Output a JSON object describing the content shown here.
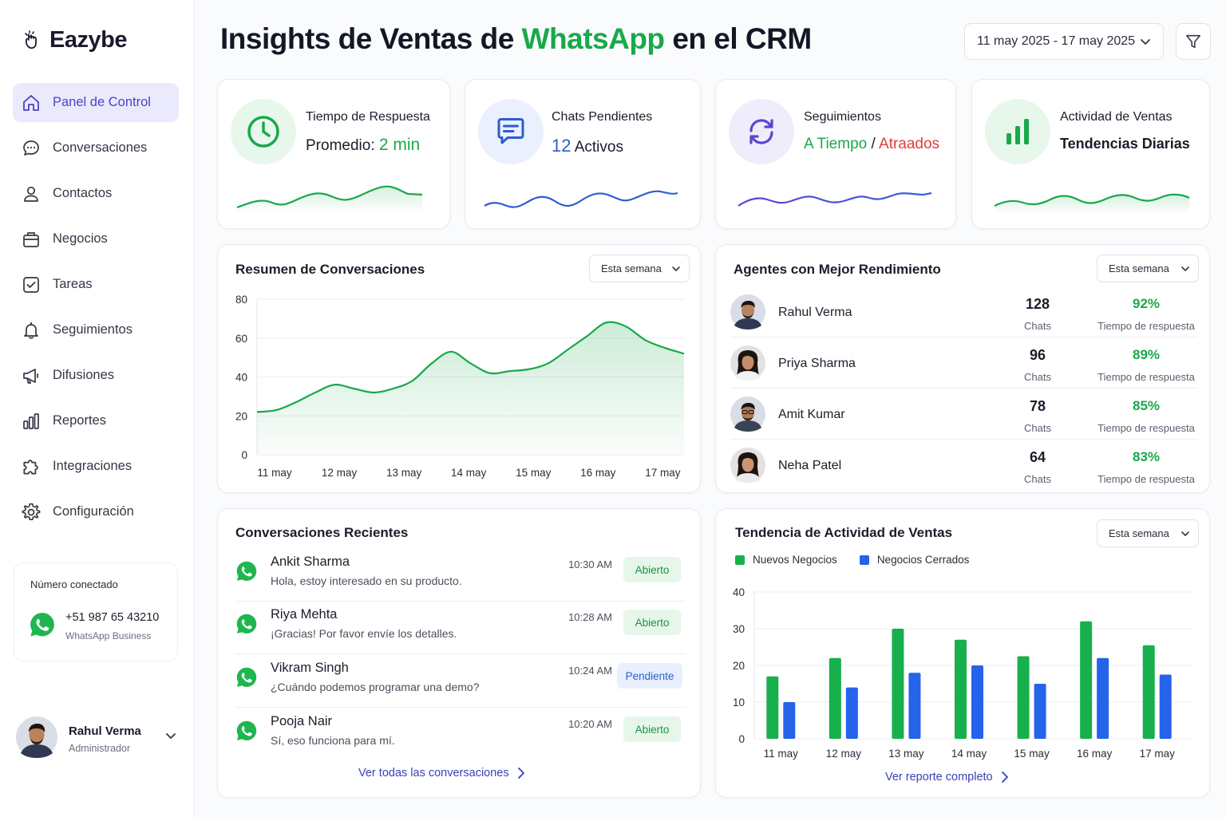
{
  "app": {
    "brand": "Eazybe"
  },
  "sidebar": {
    "items": [
      {
        "label": "Panel de Control",
        "icon": "home-icon",
        "active": true
      },
      {
        "label": "Conversaciones",
        "icon": "chat-bubble-icon"
      },
      {
        "label": "Contactos",
        "icon": "user-icon"
      },
      {
        "label": "Negocios",
        "icon": "briefcase-icon"
      },
      {
        "label": "Tareas",
        "icon": "checkbox-icon"
      },
      {
        "label": "Seguimientos",
        "icon": "bell-icon"
      },
      {
        "label": "Difusiones",
        "icon": "megaphone-icon"
      },
      {
        "label": "Reportes",
        "icon": "bar-chart-icon"
      },
      {
        "label": "Integraciones",
        "icon": "puzzle-icon"
      },
      {
        "label": "Configuración",
        "icon": "gear-icon"
      }
    ],
    "connected": {
      "title": "Número conectado",
      "number": "+51 987 65 43210",
      "type": "WhatsApp Business"
    },
    "user": {
      "name": "Rahul Verma",
      "role": "Administrador"
    }
  },
  "header": {
    "title_part1": "Insights de Ventas de ",
    "title_highlight": "WhatsApp",
    "title_part2": " en el CRM",
    "date_range": "11 may 2025 - 17 may 2025"
  },
  "kpis": {
    "response": {
      "label": "Tiempo de Respuesta",
      "prefix": "Promedio: ",
      "value": "2 min"
    },
    "pending": {
      "label": "Chats Pendientes",
      "value": "12",
      "suffix": " Activos"
    },
    "followups": {
      "label": "Seguimientos",
      "on_time": "A Tiempo",
      "sep": " / ",
      "late": "Atraados"
    },
    "sales": {
      "label": "Actividad de Ventas",
      "sub": "Tendencias Diarias"
    }
  },
  "conv_summary": {
    "title": "Resumen de Conversaciones",
    "filter": "Esta semana"
  },
  "agents": {
    "title": "Agentes con Mejor Rendimiento",
    "filter": "Esta semana",
    "chats_label": "Chats",
    "rate_label": "Tiempo de respuesta",
    "rows": [
      {
        "name": "Rahul Verma",
        "chats": "128",
        "rate": "92%"
      },
      {
        "name": "Priya Sharma",
        "chats": "96",
        "rate": "89%"
      },
      {
        "name": "Amit Kumar",
        "chats": "78",
        "rate": "85%"
      },
      {
        "name": "Neha Patel",
        "chats": "64",
        "rate": "83%"
      }
    ]
  },
  "recent": {
    "title": "Conversaciones Recientes",
    "rows": [
      {
        "name": "Ankit Sharma",
        "msg": "Hola, estoy interesado en su producto.",
        "time": "10:30 AM",
        "status": "Abierto"
      },
      {
        "name": "Riya Mehta",
        "msg": "¡Gracias! Por favor envíe los detalles.",
        "time": "10:28 AM",
        "status": "Abierto"
      },
      {
        "name": "Vikram Singh",
        "msg": "¿Cuándo podemos programar una demo?",
        "time": "10:24 AM",
        "status": "Pendiente"
      },
      {
        "name": "Pooja Nair",
        "msg": "Sí, eso funciona para mí.",
        "time": "10:20 AM",
        "status": "Abierto"
      }
    ],
    "link": "Ver todas las conversaciones"
  },
  "sales_trend": {
    "title": "Tendencia de Actividad de Ventas",
    "filter": "Esta semana",
    "link": "Ver reporte completo"
  },
  "colors": {
    "green": "#19a84a",
    "blue": "#2b5dd3",
    "purple": "#5b45d6",
    "red": "#e23b3b",
    "bar_green": "#17b04c",
    "bar_blue": "#2563eb"
  },
  "chart_data": [
    {
      "type": "area",
      "categories": [
        "11 may",
        "12 may",
        "13 may",
        "14 may",
        "15 may",
        "16 may",
        "17 may"
      ],
      "x": [
        0,
        0.3,
        0.6,
        0.9,
        1.2,
        1.5,
        1.8,
        2.1,
        2.4,
        2.7,
        3.0,
        3.3,
        3.6,
        3.9,
        4.2,
        4.5,
        4.8,
        5.1,
        5.4,
        5.7,
        6.0,
        6.3,
        6.6
      ],
      "y": [
        22,
        23,
        27,
        32,
        36,
        34,
        32,
        34,
        38,
        47,
        53,
        47,
        42,
        43,
        44,
        47,
        54,
        61,
        68,
        66,
        59,
        55,
        52
      ],
      "ylim": [
        0,
        80
      ],
      "yticks": [
        0,
        20,
        40,
        60,
        80
      ],
      "grid": true
    },
    {
      "type": "bar",
      "categories": [
        "11 may",
        "12 may",
        "13 may",
        "14 may",
        "15 may",
        "16 may",
        "17 may"
      ],
      "series": [
        {
          "name": "Nuevos Negocios",
          "values": [
            17,
            22,
            30,
            27,
            22.5,
            32,
            25.5
          ]
        },
        {
          "name": "Negocios Cerrados",
          "values": [
            10,
            14,
            18,
            20,
            15,
            22,
            17.5
          ]
        }
      ],
      "ylim": [
        0,
        40
      ],
      "yticks": [
        0,
        10,
        20,
        30,
        40
      ],
      "legend": "top-left",
      "grid": true
    }
  ]
}
